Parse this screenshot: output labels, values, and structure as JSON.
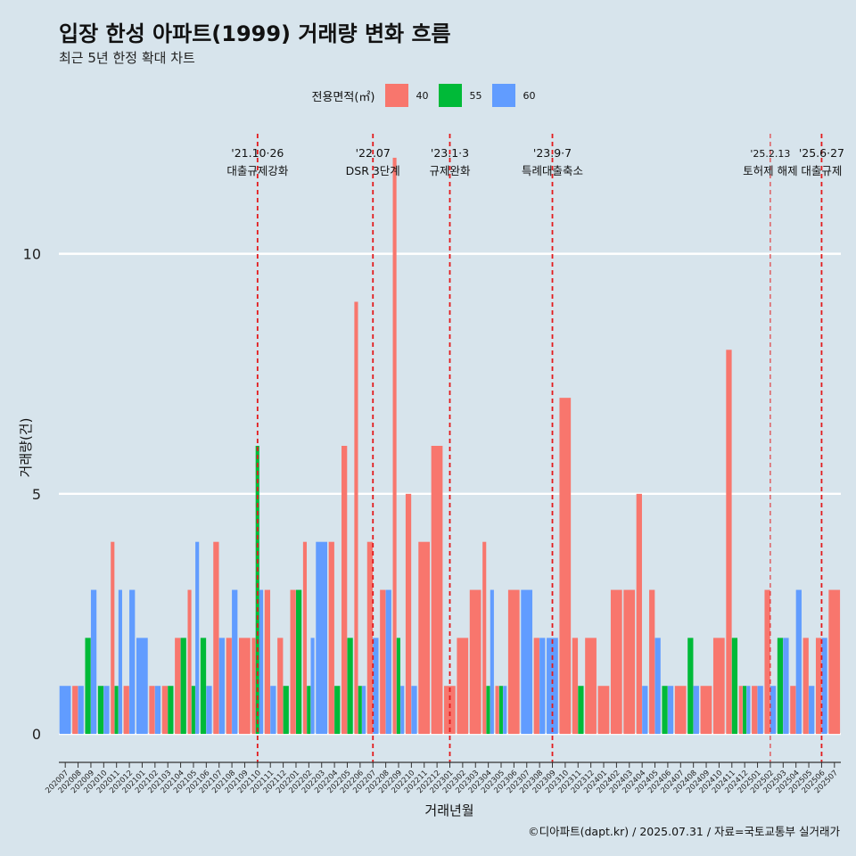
{
  "header": {
    "title": "입장 한성 아파트(1999) 거래량 변화 흐름",
    "subtitle": "최근 5년 한정 확대 차트"
  },
  "legend": {
    "title": "전용면적(㎡)",
    "items": [
      {
        "label": "40",
        "color": "#f8766d"
      },
      {
        "label": "55",
        "color": "#00ba38"
      },
      {
        "label": "60",
        "color": "#619cff"
      }
    ]
  },
  "caption": "©디아파트(dapt.kr) / 2025.07.31 / 자료=국토교통부 실거래가",
  "chart_data": {
    "type": "bar",
    "xlabel": "거래년월",
    "ylabel": "거래량(건)",
    "ylim": [
      -0.5,
      12.5
    ],
    "yticks": [
      0,
      5,
      10
    ],
    "grid": "horizontal major",
    "legend_position": "top",
    "categories": [
      "202007",
      "202008",
      "202009",
      "202010",
      "202011",
      "202012",
      "202101",
      "202102",
      "202103",
      "202104",
      "202105",
      "202106",
      "202107",
      "202108",
      "202109",
      "202110",
      "202111",
      "202112",
      "202201",
      "202202",
      "202203",
      "202204",
      "202205",
      "202206",
      "202207",
      "202208",
      "202209",
      "202210",
      "202211",
      "202212",
      "202301",
      "202302",
      "202303",
      "202304",
      "202305",
      "202306",
      "202307",
      "202308",
      "202309",
      "202310",
      "202311",
      "202312",
      "202401",
      "202402",
      "202403",
      "202404",
      "202405",
      "202406",
      "202407",
      "202408",
      "202409",
      "202410",
      "202411",
      "202412",
      "202501",
      "202502",
      "202503",
      "202504",
      "202505",
      "202506",
      "202507"
    ],
    "series": [
      {
        "name": "40",
        "values": [
          0,
          1,
          0,
          0,
          4,
          1,
          0,
          1,
          1,
          2,
          3,
          0,
          4,
          2,
          2,
          2,
          3,
          2,
          3,
          4,
          0,
          4,
          6,
          9,
          4,
          3,
          12,
          5,
          4,
          6,
          1,
          2,
          3,
          4,
          1,
          3,
          0,
          2,
          0,
          7,
          2,
          2,
          1,
          3,
          3,
          5,
          3,
          0,
          1,
          0,
          1,
          2,
          8,
          1,
          1,
          3,
          0,
          1,
          2,
          2,
          3
        ]
      },
      {
        "name": "55",
        "values": [
          0,
          0,
          2,
          1,
          1,
          0,
          0,
          0,
          1,
          2,
          1,
          2,
          0,
          0,
          0,
          6,
          0,
          1,
          3,
          1,
          0,
          1,
          2,
          1,
          0,
          0,
          2,
          0,
          0,
          0,
          0,
          0,
          0,
          1,
          1,
          0,
          0,
          0,
          0,
          0,
          1,
          0,
          0,
          0,
          0,
          0,
          0,
          1,
          0,
          2,
          0,
          0,
          2,
          1,
          0,
          0,
          2,
          0,
          0,
          0,
          0
        ]
      },
      {
        "name": "60",
        "values": [
          1,
          1,
          3,
          1,
          3,
          3,
          2,
          1,
          0,
          0,
          4,
          1,
          2,
          3,
          0,
          3,
          1,
          0,
          0,
          2,
          4,
          0,
          0,
          1,
          2,
          3,
          1,
          1,
          0,
          0,
          0,
          0,
          0,
          3,
          1,
          0,
          3,
          2,
          2,
          0,
          0,
          0,
          0,
          0,
          0,
          1,
          2,
          1,
          0,
          1,
          0,
          0,
          0,
          1,
          1,
          1,
          2,
          3,
          1,
          2,
          0
        ]
      }
    ],
    "annotations": [
      {
        "category": "202110",
        "date": "'21.10·26",
        "label": "대출규제강화"
      },
      {
        "category": "202207",
        "date": "'22.07",
        "label": "DSR 3단계"
      },
      {
        "category": "202301",
        "date": "'23.1·3",
        "label": "규제완화"
      },
      {
        "category": "202309",
        "date": "'23.9·7",
        "label": "특례대출축소"
      },
      {
        "category": "202502",
        "date": "'25.2.13",
        "label": "토허제 해제"
      },
      {
        "category": "202506",
        "date": "'25.6·27",
        "label": "대출규제"
      }
    ]
  }
}
